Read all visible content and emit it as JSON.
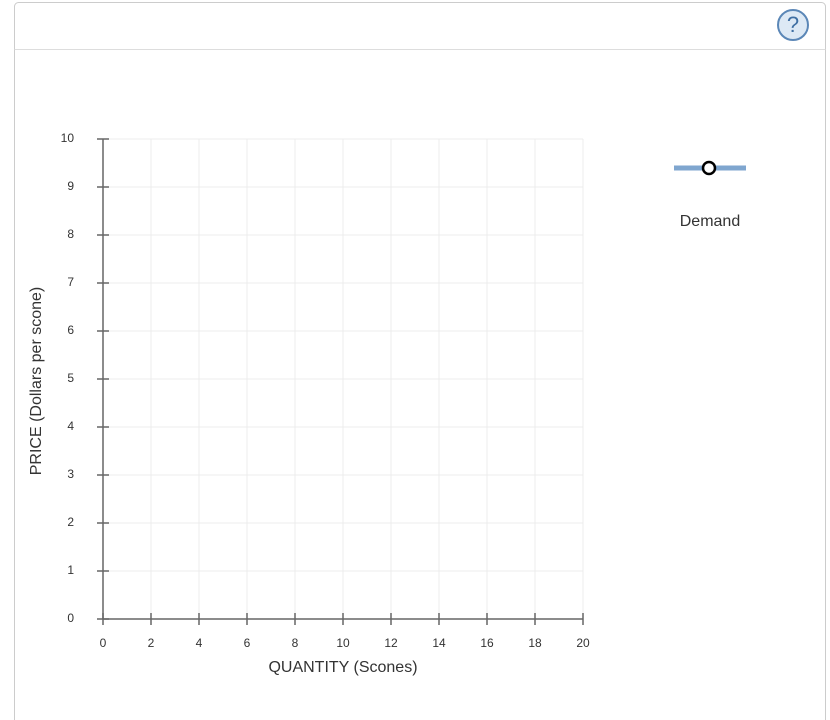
{
  "help_icon": "?",
  "chart_data": {
    "type": "line",
    "x_label": "QUANTITY (Scones)",
    "y_label": "PRICE (Dollars per scone)",
    "x": [],
    "series": [
      {
        "name": "Demand",
        "color": "#7fa6cf",
        "values": []
      }
    ],
    "xlim": [
      0,
      20
    ],
    "xticks": [
      0,
      2,
      4,
      6,
      8,
      10,
      12,
      14,
      16,
      18,
      20
    ],
    "ylim": [
      0,
      10
    ],
    "yticks": [
      0,
      1,
      2,
      3,
      4,
      5,
      6,
      7,
      8,
      9,
      10
    ],
    "grid": true
  }
}
